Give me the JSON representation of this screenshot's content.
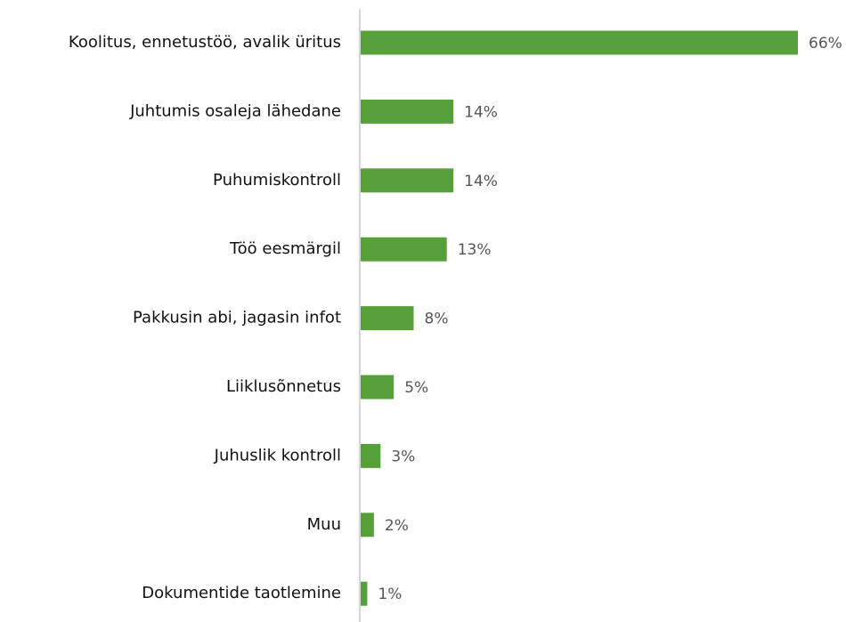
{
  "chart_data": {
    "type": "bar",
    "orientation": "horizontal",
    "categories": [
      "Koolitus, ennetustöö, avalik üritus",
      "Juhtumis osaleja lähedane",
      "Puhumiskontroll",
      "Töö eesmärgil",
      "Pakkusin abi, jagasin infot",
      "Liiklusõnnetus",
      "Juhuslik kontroll",
      "Muu",
      "Dokumentide taotlemine"
    ],
    "values": [
      66,
      14,
      14,
      13,
      8,
      5,
      3,
      2,
      1
    ],
    "value_labels": [
      "66%",
      "14%",
      "14%",
      "13%",
      "8%",
      "5%",
      "3%",
      "2%",
      "1%"
    ],
    "color": "#56a03a",
    "xlim": [
      0,
      66
    ]
  }
}
